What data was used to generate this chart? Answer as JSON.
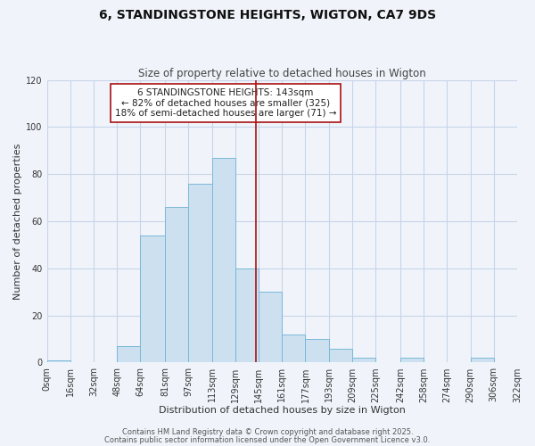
{
  "title": "6, STANDINGSTONE HEIGHTS, WIGTON, CA7 9DS",
  "subtitle": "Size of property relative to detached houses in Wigton",
  "xlabel": "Distribution of detached houses by size in Wigton",
  "ylabel": "Number of detached properties",
  "bin_edges": [
    0,
    16,
    32,
    48,
    64,
    81,
    97,
    113,
    129,
    145,
    161,
    177,
    193,
    209,
    225,
    242,
    258,
    274,
    290,
    306,
    322
  ],
  "bin_labels": [
    "0sqm",
    "16sqm",
    "32sqm",
    "48sqm",
    "64sqm",
    "81sqm",
    "97sqm",
    "113sqm",
    "129sqm",
    "145sqm",
    "161sqm",
    "177sqm",
    "193sqm",
    "209sqm",
    "225sqm",
    "242sqm",
    "258sqm",
    "274sqm",
    "290sqm",
    "306sqm",
    "322sqm"
  ],
  "counts": [
    1,
    0,
    0,
    7,
    54,
    66,
    76,
    87,
    40,
    30,
    12,
    10,
    6,
    2,
    0,
    2,
    0,
    0,
    2,
    0
  ],
  "bar_facecolor": "#cce0f0",
  "bar_edgecolor": "#7ab8d9",
  "vline_x": 143,
  "vline_color": "#aa1111",
  "ylim": [
    0,
    120
  ],
  "yticks": [
    0,
    20,
    40,
    60,
    80,
    100,
    120
  ],
  "legend_title": "6 STANDINGSTONE HEIGHTS: 143sqm",
  "legend_line1": "← 82% of detached houses are smaller (325)",
  "legend_line2": "18% of semi-detached houses are larger (71) →",
  "legend_box_facecolor": "#ffffff",
  "legend_box_edgecolor": "#aa1111",
  "footer1": "Contains HM Land Registry data © Crown copyright and database right 2025.",
  "footer2": "Contains public sector information licensed under the Open Government Licence v3.0.",
  "background_color": "#f0f4fa",
  "grid_color": "#c8d4e8",
  "title_fontsize": 10,
  "subtitle_fontsize": 8.5,
  "axis_label_fontsize": 8,
  "tick_fontsize": 7,
  "legend_fontsize": 7.5,
  "footer_fontsize": 6
}
